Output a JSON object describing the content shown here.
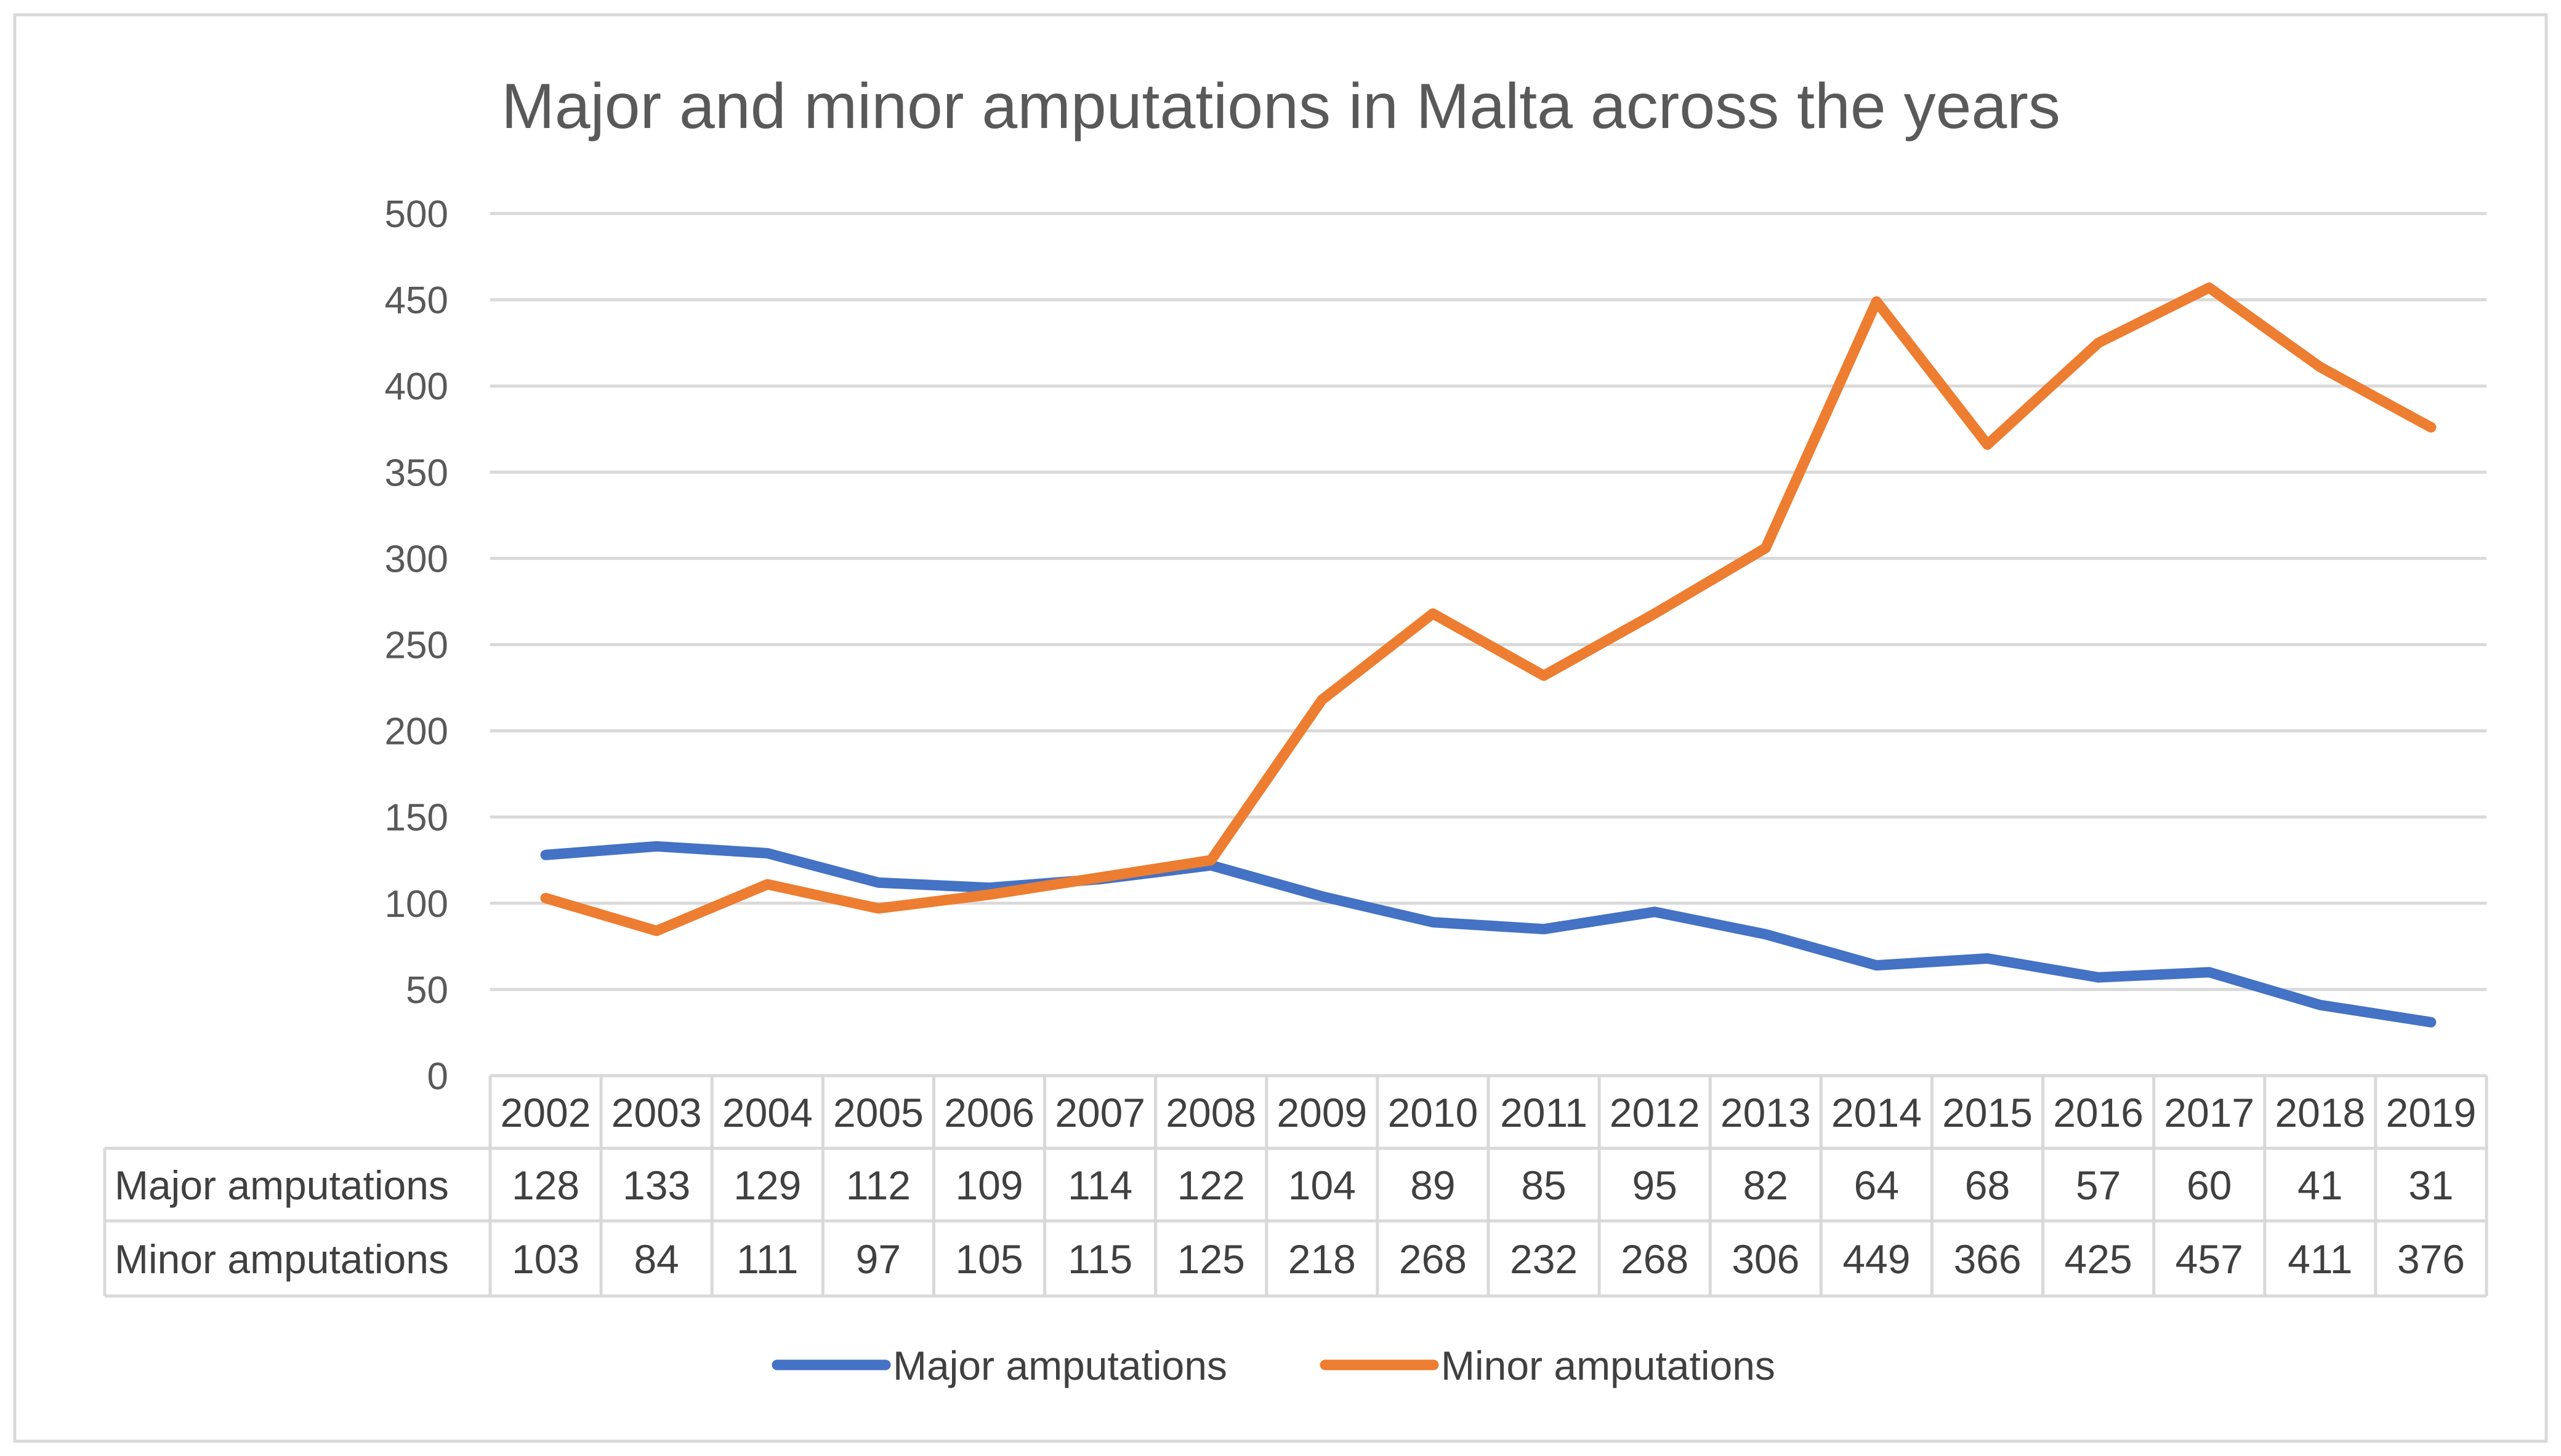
{
  "chart_data": {
    "type": "line",
    "title": "Major and minor amputations in Malta across the years",
    "xlabel": "",
    "ylabel": "",
    "categories": [
      "2002",
      "2003",
      "2004",
      "2005",
      "2006",
      "2007",
      "2008",
      "2009",
      "2010",
      "2011",
      "2012",
      "2013",
      "2014",
      "2015",
      "2016",
      "2017",
      "2018",
      "2019"
    ],
    "ylim": [
      0,
      500
    ],
    "yticks": [
      0,
      50,
      100,
      150,
      200,
      250,
      300,
      350,
      400,
      450,
      500
    ],
    "grid": true,
    "legend": "bottom",
    "data_table": true,
    "series": [
      {
        "name": "Major amputations",
        "color": "#4472c4",
        "values": [
          128,
          133,
          129,
          112,
          109,
          114,
          122,
          104,
          89,
          85,
          95,
          82,
          64,
          68,
          57,
          60,
          41,
          31
        ]
      },
      {
        "name": "Minor amputations",
        "color": "#ed7d31",
        "values": [
          103,
          84,
          111,
          97,
          105,
          115,
          125,
          218,
          268,
          232,
          268,
          306,
          449,
          366,
          425,
          457,
          411,
          376
        ]
      }
    ]
  }
}
